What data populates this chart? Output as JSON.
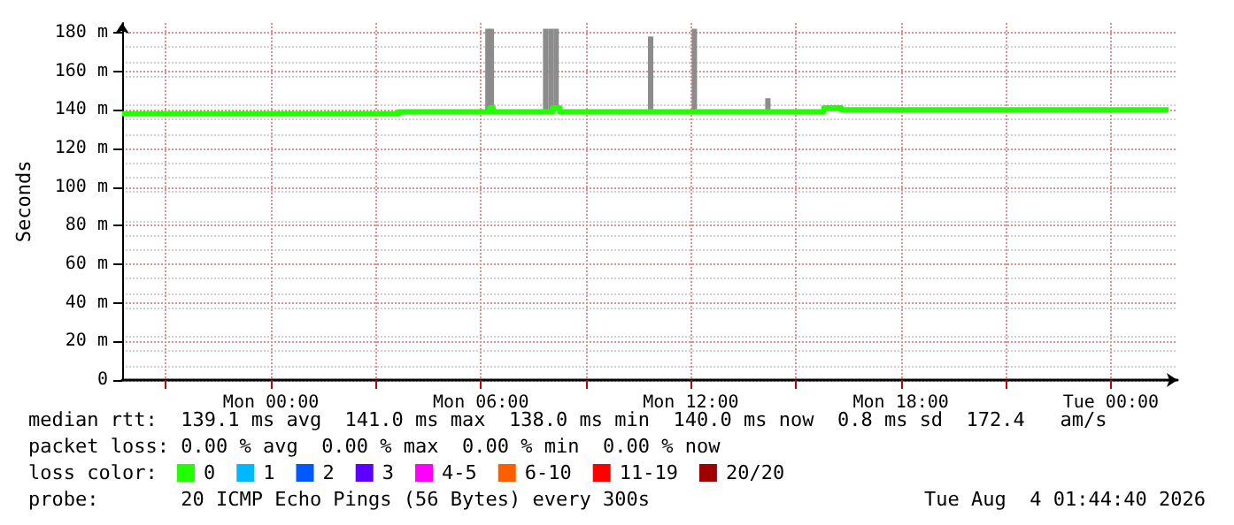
{
  "chart_data": {
    "type": "step",
    "ylabel": "Seconds",
    "xlim": [
      "2026-08-02T19:45",
      "2026-08-04T01:54"
    ],
    "xticks": [
      {
        "value": "2026-08-02T21:00",
        "label": null
      },
      {
        "value": "2026-08-03T00:00",
        "label": "Mon 00:00"
      },
      {
        "value": "2026-08-03T03:00",
        "label": null
      },
      {
        "value": "2026-08-03T06:00",
        "label": "Mon 06:00"
      },
      {
        "value": "2026-08-03T09:00",
        "label": null
      },
      {
        "value": "2026-08-03T12:00",
        "label": "Mon 12:00"
      },
      {
        "value": "2026-08-03T15:00",
        "label": null
      },
      {
        "value": "2026-08-03T18:00",
        "label": "Mon 18:00"
      },
      {
        "value": "2026-08-03T21:00",
        "label": null
      },
      {
        "value": "2026-08-04T00:00",
        "label": "Tue 00:00"
      }
    ],
    "ylim": [
      0,
      185
    ],
    "yticks": [
      0,
      {
        "value": 20,
        "label": "20 m"
      },
      {
        "value": 40,
        "label": "40 m"
      },
      {
        "value": 60,
        "label": "60 m"
      },
      {
        "value": 80,
        "label": "80 m"
      },
      {
        "value": 100,
        "label": "100 m"
      },
      {
        "value": 120,
        "label": "120 m"
      },
      {
        "value": 140,
        "label": "140 m"
      },
      {
        "value": 160,
        "label": "160 m"
      },
      {
        "value": 180,
        "label": "180 m"
      }
    ],
    "grid": true,
    "legend": "bottom",
    "legend_title": "loss color:",
    "series": [
      {
        "type": "bar",
        "color": "#8c8c8c",
        "x": [
          "2026-08-03T06:12",
          "2026-08-03T06:18",
          "2026-08-03T07:51",
          "2026-08-03T08:00",
          "2026-08-03T08:09",
          "2026-08-03T10:51",
          "2026-08-03T12:06",
          "2026-08-03T14:12"
        ],
        "base": [
          140,
          140,
          140,
          140,
          140,
          140,
          140,
          140
        ],
        "values": [
          42,
          42,
          42,
          42,
          42,
          38,
          42,
          6
        ]
      },
      {
        "name": "0",
        "color": "#22ff00",
        "x": [
          "2026-08-02T19:45",
          "2026-08-03T03:39",
          "2026-08-03T06:15",
          "2026-08-03T06:21",
          "2026-08-03T08:03",
          "2026-08-03T08:15",
          "2026-08-03T15:48",
          "2026-08-03T16:18",
          "2026-08-04T01:39"
        ],
        "values": [
          138,
          139,
          141,
          139,
          141,
          139,
          141,
          140,
          140
        ]
      },
      {
        "name": "1",
        "color": "#00b8ff"
      },
      {
        "name": "2",
        "color": "#0059ff"
      },
      {
        "name": "3",
        "color": "#5e00ff"
      },
      {
        "name": "4-5",
        "color": "#ff00ff"
      },
      {
        "name": "6-10",
        "color": "#ff5e00"
      },
      {
        "name": "11-19",
        "color": "#ff0000"
      },
      {
        "name": "20/20",
        "color": "#a10000"
      }
    ],
    "annotations": [
      "median rtt:  139.1 ms avg  141.0 ms max  138.0 ms min  140.0 ms now  0.8 ms sd  172.4   am/s",
      "packet loss: 0.00 % avg  0.00 % max  0.00 % min  0.00 % now",
      "probe:       20 ICMP Echo Pings (56 Bytes) every 300s",
      "Tue Aug  4 01:44:40 2026"
    ]
  }
}
